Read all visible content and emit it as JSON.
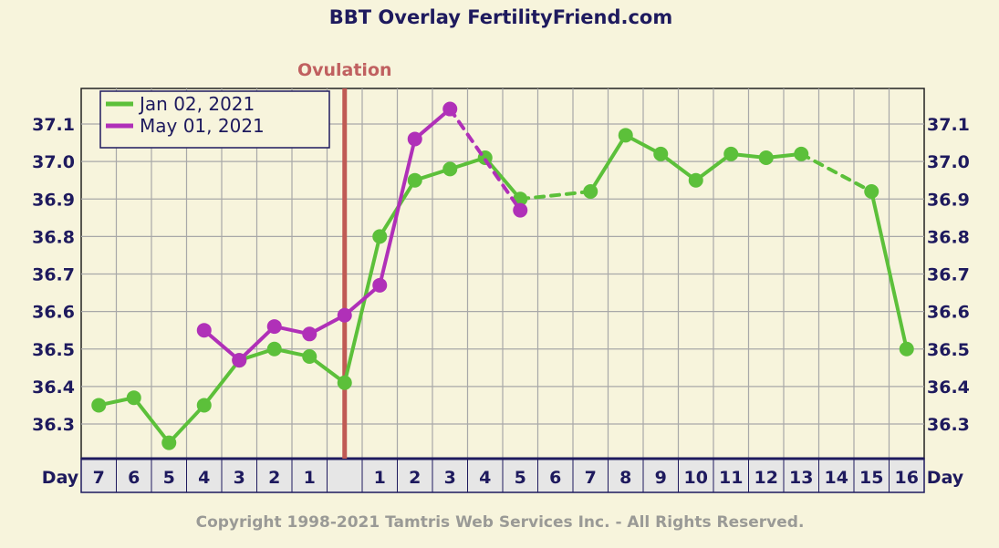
{
  "chart_data": {
    "type": "line",
    "title": "BBT Overlay FertilityFriend.com",
    "copyright": "Copyright 1998-2021 Tamtris Web Services Inc. - All Rights Reserved.",
    "x_axis_label": "Day",
    "ovulation_label": "Ovulation",
    "ylim": [
      36.2,
      37.2
    ],
    "y_ticks": [
      "37.1",
      "37.0",
      "36.9",
      "36.8",
      "36.7",
      "36.6",
      "36.5",
      "36.4",
      "36.3"
    ],
    "categories": [
      "7",
      "6",
      "5",
      "4",
      "3",
      "2",
      "1",
      "",
      "1",
      "2",
      "3",
      "4",
      "5",
      "6",
      "7",
      "8",
      "9",
      "10",
      "11",
      "12",
      "13",
      "14",
      "15",
      "16"
    ],
    "ovulation_after_category": "1",
    "grid": true,
    "legend_position": "top-left",
    "series": [
      {
        "name": "Jan 02, 2021",
        "color": "#5cc03a",
        "values": [
          36.35,
          36.37,
          36.25,
          36.35,
          36.47,
          36.5,
          36.48,
          36.41,
          36.8,
          36.95,
          36.98,
          37.01,
          36.9,
          null,
          36.92,
          37.07,
          37.02,
          36.95,
          37.02,
          37.01,
          37.02,
          null,
          36.92,
          36.5
        ]
      },
      {
        "name": "May 01, 2021",
        "color": "#b030b8",
        "values": [
          null,
          null,
          null,
          36.55,
          36.47,
          36.56,
          36.54,
          36.59,
          36.67,
          37.06,
          37.14,
          null,
          36.87,
          null,
          null,
          null,
          null,
          null,
          null,
          null,
          null,
          null,
          null,
          null
        ]
      }
    ]
  }
}
